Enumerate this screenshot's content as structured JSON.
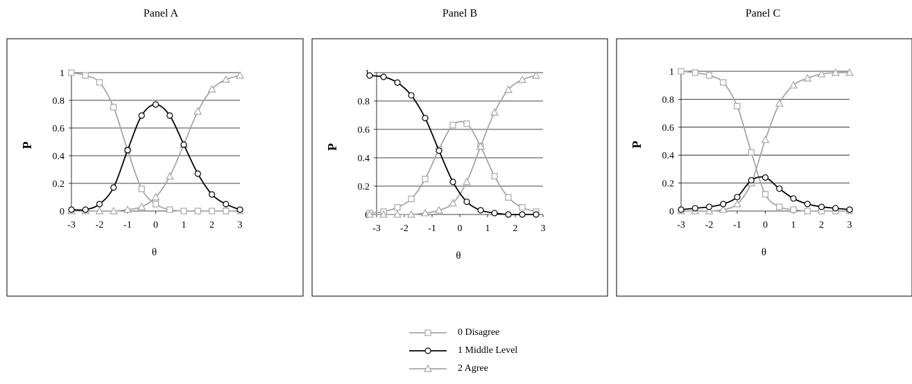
{
  "colors": {
    "disagree": "#a6a6a6",
    "middle": "#000000",
    "agree": "#a6a6a6",
    "grid": "#000000",
    "frame": "#000000"
  },
  "legend": [
    {
      "key": "disagree",
      "label": "0  Disagree",
      "marker": "square"
    },
    {
      "key": "middle",
      "label": "1  Middle Level",
      "marker": "circle"
    },
    {
      "key": "agree",
      "label": "2  Agree",
      "marker": "triangle"
    }
  ],
  "chart_data": [
    {
      "type": "line",
      "title": "Panel A",
      "xlabel": "θ",
      "ylabel": "P",
      "xlim": [
        -3,
        3
      ],
      "ylim": [
        0,
        1
      ],
      "xticks": [
        "-3",
        "-2",
        "-1",
        "0",
        "1",
        "2",
        "3"
      ],
      "yticks": [
        "0",
        "0.2",
        "0.4",
        "0.6",
        "0.8",
        "1"
      ],
      "grid": true,
      "x": [
        -3,
        -2.5,
        -2,
        -1.5,
        -1,
        -0.5,
        0,
        0.5,
        1,
        1.5,
        2,
        2.5,
        3
      ],
      "series": [
        {
          "name": "0  Disagree",
          "key": "disagree",
          "values": [
            1.0,
            0.98,
            0.93,
            0.75,
            0.44,
            0.16,
            0.05,
            0.01,
            0.0,
            0.0,
            0.0,
            0.0,
            0.0
          ]
        },
        {
          "name": "1  Middle Level",
          "key": "middle",
          "values": [
            0.01,
            0.01,
            0.05,
            0.17,
            0.44,
            0.69,
            0.77,
            0.69,
            0.48,
            0.27,
            0.12,
            0.05,
            0.01
          ]
        },
        {
          "name": "2  Agree",
          "key": "agree",
          "values": [
            0.0,
            0.0,
            0.0,
            0.0,
            0.01,
            0.03,
            0.1,
            0.25,
            0.48,
            0.72,
            0.88,
            0.95,
            0.98
          ]
        }
      ]
    },
    {
      "type": "line",
      "title": "Panel B",
      "xlabel": "θ",
      "ylabel": "P",
      "xlim": [
        -3,
        3
      ],
      "ylim": [
        0,
        1
      ],
      "xticks": [
        "-3",
        "-2",
        "-1",
        "0",
        "1",
        "2",
        "3"
      ],
      "yticks": [
        "0",
        "0.2",
        "0.4",
        "0.6",
        "0.8",
        "1"
      ],
      "grid": true,
      "x": [
        -3.25,
        -2.75,
        -2.25,
        -1.75,
        -1.25,
        -0.75,
        -0.25,
        0.25,
        0.75,
        1.25,
        1.75,
        2.25,
        2.75
      ],
      "series": [
        {
          "name": "0  Disagree",
          "key": "disagree",
          "values": [
            0.01,
            0.02,
            0.05,
            0.11,
            0.25,
            0.46,
            0.63,
            0.64,
            0.48,
            0.27,
            0.12,
            0.05,
            0.02
          ]
        },
        {
          "name": "1  Middle Level",
          "key": "middle",
          "values": [
            0.98,
            0.97,
            0.93,
            0.84,
            0.68,
            0.45,
            0.23,
            0.09,
            0.03,
            0.01,
            0.0,
            0.0,
            0.0
          ]
        },
        {
          "name": "2  Agree",
          "key": "agree",
          "values": [
            0.0,
            0.0,
            0.0,
            0.0,
            0.01,
            0.03,
            0.08,
            0.23,
            0.48,
            0.72,
            0.88,
            0.95,
            0.98
          ]
        }
      ]
    },
    {
      "type": "line",
      "title": "Panel C",
      "xlabel": "θ",
      "ylabel": "P",
      "xlim": [
        -3,
        3
      ],
      "ylim": [
        0,
        1
      ],
      "xticks": [
        "-3",
        "-2",
        "-1",
        "0",
        "1",
        "2",
        "3"
      ],
      "yticks": [
        "0",
        "0.2",
        "0.4",
        "0.6",
        "0.8",
        "1"
      ],
      "grid": true,
      "x": [
        -3,
        -2.5,
        -2,
        -1.5,
        -1,
        -0.5,
        0,
        0.5,
        1,
        1.5,
        2,
        2.5,
        3
      ],
      "series": [
        {
          "name": "0  Disagree",
          "key": "disagree",
          "values": [
            1.0,
            0.99,
            0.97,
            0.92,
            0.75,
            0.42,
            0.12,
            0.03,
            0.01,
            0.0,
            0.0,
            0.0,
            0.0
          ]
        },
        {
          "name": "1  Middle Level",
          "key": "middle",
          "values": [
            0.01,
            0.02,
            0.03,
            0.05,
            0.1,
            0.22,
            0.24,
            0.16,
            0.09,
            0.05,
            0.03,
            0.02,
            0.01
          ]
        },
        {
          "name": "2  Agree",
          "key": "agree",
          "values": [
            0.0,
            0.0,
            0.0,
            0.01,
            0.05,
            0.2,
            0.51,
            0.77,
            0.9,
            0.95,
            0.98,
            0.99,
            0.99
          ]
        }
      ]
    }
  ]
}
